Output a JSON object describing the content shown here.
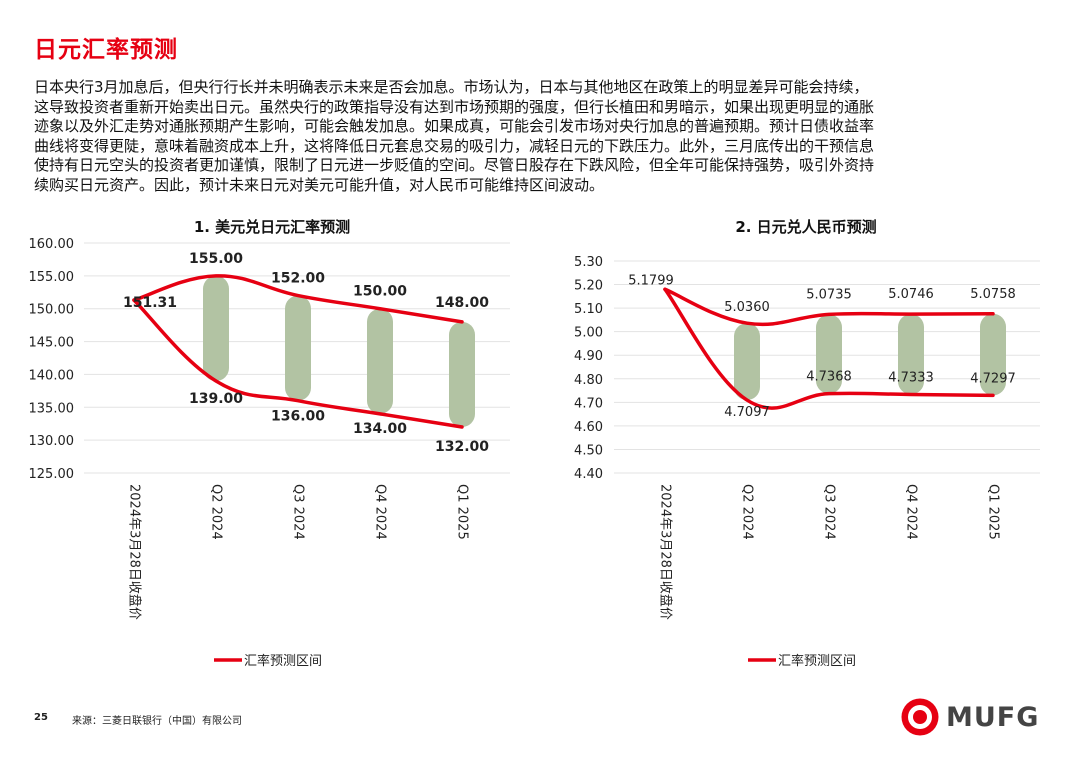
{
  "page": {
    "title": "日元汇率预测",
    "paragraph": "日本央行3月加息后，但央行行长并未明确表示未来是否会加息。市场认为，日本与其他地区在政策上的明显差异可能会持续，\n这导致投资者重新开始卖出日元。虽然央行的政策指导没有达到市场预期的强度，但行长植田和男暗示，如果出现更明显的通胀\n迹象以及外汇走势对通胀预期产生影响，可能会触发加息。如果成真，可能会引发市场对央行加息的普遍预期。预计日债收益率\n曲线将变得更陡，意味着融资成本上升，这将降低日元套息交易的吸引力，减轻日元的下跌压力。此外，三月底传出的干预信息\n使持有日元空头的投资者更加谨慎，限制了日元进一步贬值的空间。尽管日股存在下跌风险，但全年可能保持强势，吸引外资持\n续购买日元资产。因此，预计未来日元对美元可能升值，对人民币可能维持区间波动。",
    "page_number": "25",
    "source": "来源：三菱日联银行（中国）有限公司",
    "logo_text": "MUFG",
    "accent_color": "#e60012"
  },
  "chart_data": [
    {
      "type": "line",
      "title": "1. 美元兑日元汇率预测",
      "categories": [
        "2024年3月28日收盘价",
        "Q2 2024",
        "Q3 2024",
        "Q4 2024",
        "Q1 2025"
      ],
      "series": [
        {
          "name": "汇率预测区间",
          "values": [
            151.31,
            155.0,
            152.0,
            150.0,
            148.0
          ]
        },
        {
          "name": "",
          "values": [
            151.31,
            139.0,
            136.0,
            134.0,
            132.0
          ]
        }
      ],
      "data_labels": {
        "high": [
          "151.31",
          "155.00",
          "152.00",
          "150.00",
          "148.00"
        ],
        "low": [
          "",
          "139.00",
          "136.00",
          "134.00",
          "132.00"
        ]
      },
      "y_tick_labels": [
        "160.00",
        "155.00",
        "150.00",
        "145.00",
        "140.00",
        "135.00",
        "130.00",
        "125.00"
      ],
      "ylim": [
        125,
        160
      ],
      "yticks": [
        160,
        155,
        150,
        145,
        140,
        135,
        130,
        125
      ],
      "range_bars": true,
      "line_color": "#e60012",
      "bar_color": "#b2c3a3",
      "legend": "bottom",
      "legend_label": "汇率预测区间",
      "grid": true
    },
    {
      "type": "line",
      "title": "2. 日元兑人民币预测",
      "categories": [
        "2024年3月28日收盘价",
        "Q2 2024",
        "Q3 2024",
        "Q4 2024",
        "Q1 2025"
      ],
      "series": [
        {
          "name": "汇率预测区间",
          "values": [
            5.1799,
            5.036,
            5.0735,
            5.0746,
            5.0758
          ]
        },
        {
          "name": "",
          "values": [
            5.1799,
            4.7097,
            4.7368,
            4.7333,
            4.7297
          ]
        }
      ],
      "data_labels": {
        "high": [
          "5.1799",
          "5.0360",
          "5.0735",
          "5.0746",
          "5.0758"
        ],
        "low": [
          "",
          "4.7097",
          "4.7368",
          "4.7333",
          "4.7297"
        ]
      },
      "y_tick_labels": [
        "5.30",
        "5.20",
        "5.10",
        "5.00",
        "4.90",
        "4.80",
        "4.70",
        "4.60",
        "4.50",
        "4.40"
      ],
      "ylim": [
        4.4,
        5.3
      ],
      "yticks": [
        5.3,
        5.2,
        5.1,
        5.0,
        4.9,
        4.8,
        4.7,
        4.6,
        4.5,
        4.4
      ],
      "range_bars": true,
      "line_color": "#e60012",
      "bar_color": "#b2c3a3",
      "legend": "bottom",
      "legend_label": "汇率预测区间",
      "grid": true
    }
  ]
}
